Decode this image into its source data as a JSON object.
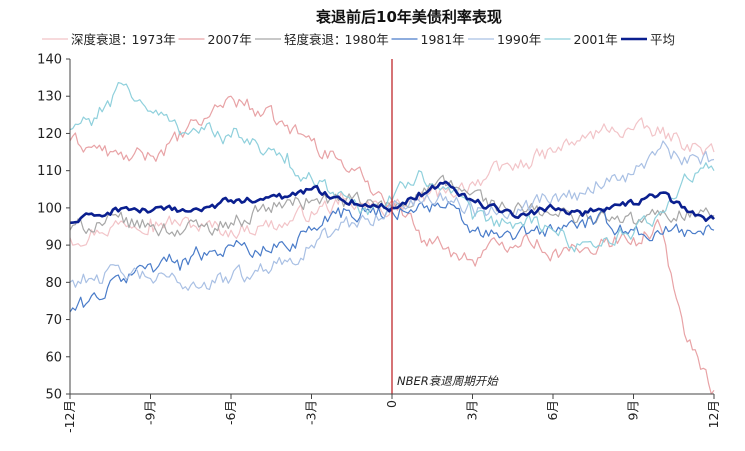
{
  "chart_data": {
    "type": "line",
    "title": "衰退前后10年美债利率表现",
    "legend": {
      "placement": "top",
      "groups": [
        {
          "label": "深度衰退：",
          "entries": [
            "1973年",
            "2007年"
          ]
        },
        {
          "label": "轻度衰退：",
          "entries": [
            "1980年",
            "1981年",
            "1990年",
            "2001年",
            "平均"
          ]
        }
      ]
    },
    "xlabel": "",
    "ylabel": "",
    "x_ticks": [
      "-12月",
      "-9月",
      "-6月",
      "-3月",
      "0",
      "3月",
      "6月",
      "9月",
      "12月"
    ],
    "y_ticks": [
      "50",
      "60",
      "70",
      "80",
      "90",
      "100",
      "110",
      "120",
      "130",
      "140"
    ],
    "xlim": [
      -12,
      12
    ],
    "ylim": [
      50,
      140
    ],
    "grid": false,
    "annotation": {
      "x": 0,
      "label": "NBER衰退周期开始",
      "color": "#c0282d"
    },
    "series": [
      {
        "name": "1973年",
        "color": "#f2c4c8",
        "width": 1.2,
        "x": [
          -12,
          -11,
          -10,
          -9,
          -8,
          -7,
          -6,
          -5,
          -4,
          -3,
          -2,
          -1,
          0,
          1,
          2,
          3,
          4,
          5,
          6,
          7,
          8,
          9,
          10,
          11,
          12
        ],
        "values": [
          92,
          94,
          96,
          97,
          96,
          95,
          94,
          95,
          96,
          99,
          101,
          100,
          100,
          102,
          104,
          107,
          110,
          112,
          115,
          118,
          121,
          121,
          120,
          117,
          115
        ]
      },
      {
        "name": "2007年",
        "color": "#e8a3a6",
        "width": 1.2,
        "x": [
          -12,
          -11,
          -10,
          -9,
          -8,
          -7,
          -6,
          -5,
          -4,
          -3,
          -2,
          -1,
          0,
          1,
          2,
          3,
          4,
          5,
          6,
          7,
          8,
          9,
          10,
          11,
          12
        ],
        "values": [
          118,
          116,
          113,
          114,
          118,
          124,
          130,
          126,
          122,
          118,
          113,
          107,
          102,
          94,
          89,
          86,
          90,
          93,
          88,
          88,
          92,
          92,
          95,
          64,
          51
        ]
      },
      {
        "name": "1980年",
        "color": "#a7a7a7",
        "width": 1.2,
        "x": [
          -12,
          -11,
          -10,
          -9,
          -8,
          -7,
          -6,
          -5,
          -4,
          -3,
          -2,
          -1,
          0,
          1,
          2,
          3,
          4,
          5,
          6,
          7,
          8,
          9,
          10,
          11,
          12
        ],
        "values": [
          94,
          96,
          96,
          95,
          94,
          95,
          96,
          99,
          101,
          102,
          102,
          101,
          100,
          104,
          106,
          104,
          100,
          99,
          98,
          98,
          97,
          96,
          98,
          99,
          98
        ]
      },
      {
        "name": "1981年",
        "color": "#4a7cc9",
        "width": 1.2,
        "x": [
          -12,
          -11,
          -10,
          -9,
          -8,
          -7,
          -6,
          -5,
          -4,
          -3,
          -2,
          -1,
          0,
          1,
          2,
          3,
          4,
          5,
          6,
          7,
          8,
          9,
          10,
          11,
          12
        ],
        "values": [
          72,
          76,
          81,
          85,
          86,
          88,
          90,
          88,
          90,
          94,
          100,
          99,
          99,
          101,
          100,
          94,
          92,
          93,
          94,
          96,
          96,
          94,
          93,
          94,
          94
        ]
      },
      {
        "name": "1990年",
        "color": "#a9c0e4",
        "width": 1.2,
        "x": [
          -12,
          -11,
          -10,
          -9,
          -8,
          -7,
          -6,
          -5,
          -4,
          -3,
          -2,
          -1,
          0,
          1,
          2,
          3,
          4,
          5,
          6,
          7,
          8,
          9,
          10,
          11,
          12
        ],
        "values": [
          80,
          82,
          82,
          81,
          80,
          80,
          81,
          83,
          86,
          90,
          94,
          97,
          100,
          102,
          103,
          100,
          99,
          102,
          103,
          104,
          108,
          109,
          116,
          112,
          113
        ]
      },
      {
        "name": "2001年",
        "color": "#8fd0dc",
        "width": 1.2,
        "x": [
          -12,
          -11,
          -10,
          -9,
          -8,
          -7,
          -6,
          -5,
          -4,
          -3,
          -2,
          -1,
          0,
          1,
          2,
          3,
          4,
          5,
          6,
          7,
          8,
          9,
          10,
          11,
          12
        ],
        "values": [
          121,
          124,
          133,
          126,
          122,
          121,
          119,
          117,
          112,
          108,
          104,
          100,
          102,
          110,
          105,
          97,
          95,
          97,
          94,
          90,
          92,
          93,
          99,
          108,
          110
        ]
      },
      {
        "name": "平均",
        "color": "#0a1f8f",
        "width": 2.6,
        "x": [
          -12,
          -11,
          -10,
          -9,
          -8,
          -7,
          -6,
          -5,
          -4,
          -3,
          -2,
          -1,
          0,
          1,
          2,
          3,
          4,
          5,
          6,
          7,
          8,
          9,
          10,
          11,
          12
        ],
        "values": [
          96,
          98,
          100,
          99,
          99,
          100,
          102,
          102,
          103,
          105,
          103,
          101,
          100,
          104,
          107,
          102,
          99,
          98,
          100,
          99,
          100,
          101,
          104,
          99,
          97
        ]
      }
    ]
  }
}
